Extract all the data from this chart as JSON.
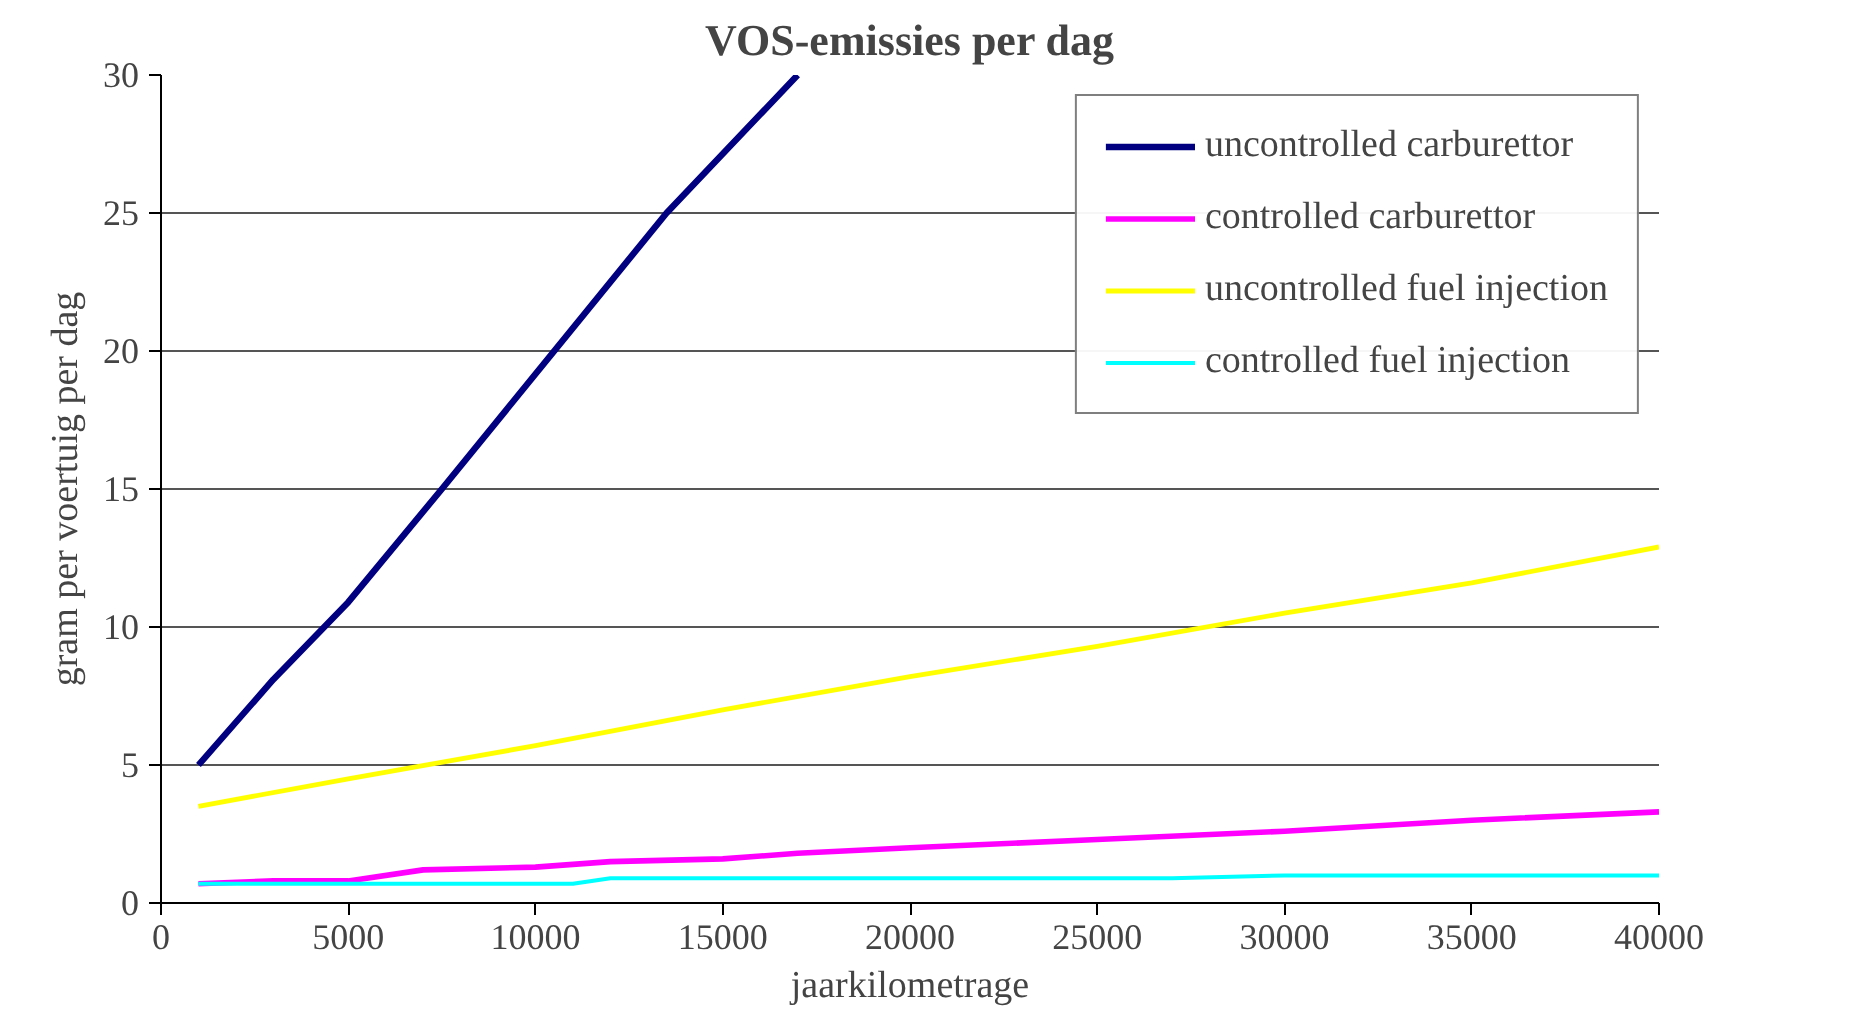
{
  "chart_data": {
    "type": "line",
    "title": "VOS-emissies per dag",
    "xlabel": "jaarkilometrage",
    "ylabel": "gram per voertuig per dag",
    "xlim": [
      0,
      40000
    ],
    "xticks": [
      0,
      5000,
      10000,
      15000,
      20000,
      25000,
      30000,
      35000,
      40000
    ],
    "ylim": [
      0,
      30
    ],
    "yticks": [
      0,
      5,
      10,
      15,
      20,
      25,
      30
    ],
    "grid": "y",
    "legend": "top right",
    "series": [
      {
        "name": "uncontrolled carburettor",
        "color": "#000080",
        "x": [
          1000,
          3000,
          5000,
          7500,
          10500,
          13500,
          17000
        ],
        "values": [
          5,
          8.1,
          10.9,
          15,
          20,
          25,
          30
        ]
      },
      {
        "name": "controlled carburettor",
        "color": "#ff00ff",
        "x": [
          1000,
          3000,
          5000,
          7000,
          10000,
          12000,
          15000,
          17000,
          20000,
          25000,
          30000,
          35000,
          40000
        ],
        "values": [
          0.7,
          0.8,
          0.8,
          1.2,
          1.3,
          1.5,
          1.6,
          1.8,
          2,
          2.3,
          2.6,
          3.0,
          3.3
        ]
      },
      {
        "name": "uncontrolled fuel injection",
        "color": "#ffff00",
        "x": [
          1000,
          5000,
          10000,
          15000,
          20000,
          25000,
          30000,
          35000,
          40000
        ],
        "values": [
          3.5,
          4.5,
          5.7,
          7,
          8.2,
          9.3,
          10.5,
          11.6,
          12.9
        ]
      },
      {
        "name": "controlled fuel injection",
        "color": "#00ffff",
        "x": [
          1000,
          11000,
          12000,
          27000,
          30000,
          40000
        ],
        "values": [
          0.7,
          0.7,
          0.9,
          0.9,
          1.0,
          1.0
        ]
      }
    ]
  }
}
